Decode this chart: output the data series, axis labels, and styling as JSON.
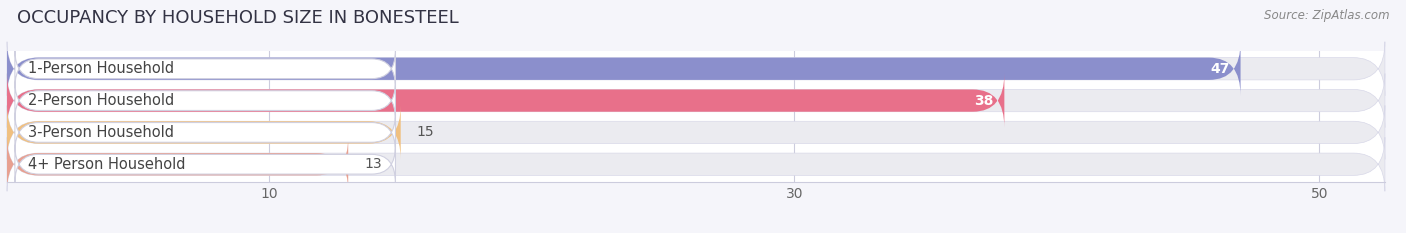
{
  "title": "OCCUPANCY BY HOUSEHOLD SIZE IN BONESTEEL",
  "source": "Source: ZipAtlas.com",
  "categories": [
    "1-Person Household",
    "2-Person Household",
    "3-Person Household",
    "4+ Person Household"
  ],
  "values": [
    47,
    38,
    15,
    13
  ],
  "bar_colors": [
    "#8b8fcc",
    "#e8708a",
    "#f0c080",
    "#e8a090"
  ],
  "bar_bg_color": "#ebebf0",
  "label_bg_color": "#ffffff",
  "xlim_max": 52.5,
  "xticks": [
    10,
    30,
    50
  ],
  "background_color": "#ffffff",
  "fig_background_color": "#f5f5fa",
  "title_fontsize": 13,
  "label_fontsize": 10.5,
  "value_fontsize": 10,
  "bar_height": 0.7,
  "figsize": [
    14.06,
    2.33
  ],
  "dpi": 100
}
